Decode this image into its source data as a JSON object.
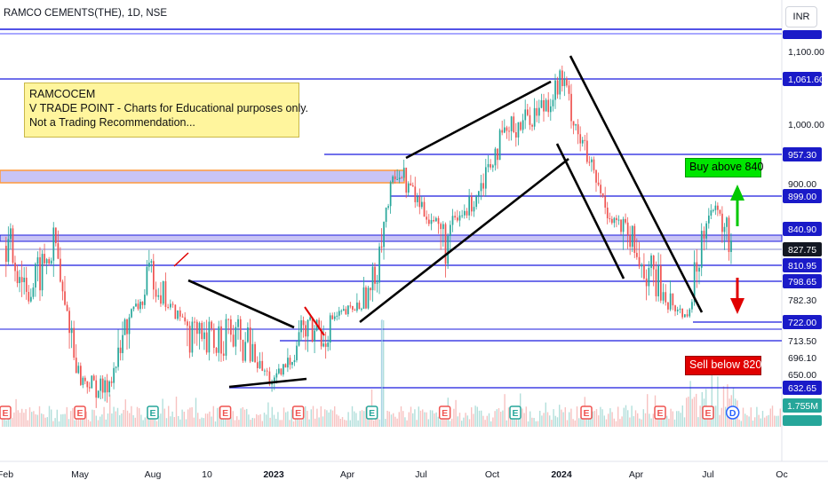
{
  "header": {
    "title": "RAMCO CEMENTS(THE), 1D, NSE",
    "currency_button": "INR"
  },
  "note": {
    "lines": [
      "RAMCOCEM",
      "V TRADE POINT - Charts for Educational purposes only.",
      "Not a Trading Recommendation..."
    ]
  },
  "signals": {
    "buy_label": "Buy above 840",
    "sell_label": "Sell below 820"
  },
  "chart_data": {
    "type": "line",
    "x_tick_labels": [
      "Feb",
      "May",
      "Aug",
      "10",
      "2023",
      "Apr",
      "Jul",
      "Oct",
      "2024",
      "Apr",
      "Jul",
      "Oc"
    ],
    "y_scale_ticks": [
      "1,100.00",
      "1,000.00",
      "900.00",
      "650.00"
    ],
    "price_levels": [
      {
        "value": "1,061.60",
        "style": "tag"
      },
      {
        "value": "957.30",
        "style": "tag"
      },
      {
        "value": "899.00",
        "style": "tag"
      },
      {
        "value": "840.90",
        "style": "tag"
      },
      {
        "value": "827.75",
        "style": "current"
      },
      {
        "value": "810.95",
        "style": "tag"
      },
      {
        "value": "798.65",
        "style": "tag"
      },
      {
        "value": "782.30",
        "style": "plain"
      },
      {
        "value": "722.00",
        "style": "tag"
      },
      {
        "value": "713.50",
        "style": "plain"
      },
      {
        "value": "696.10",
        "style": "plain"
      },
      {
        "value": "632.65",
        "style": "tag"
      }
    ],
    "volume_labels": [
      "1.755M"
    ],
    "current_price": 827.75,
    "price_path": [
      {
        "t": "Feb 2022",
        "close": 830
      },
      {
        "t": "Mar 2022",
        "close": 790
      },
      {
        "t": "Apr 2022",
        "close": 830
      },
      {
        "t": "May 2022",
        "close": 650
      },
      {
        "t": "Jun 2022",
        "close": 630
      },
      {
        "t": "Jul 2022",
        "close": 740
      },
      {
        "t": "Aug 2022",
        "close": 810
      },
      {
        "t": "Sep 2022",
        "close": 740
      },
      {
        "t": "Oct 2022",
        "close": 700
      },
      {
        "t": "Nov 2022",
        "close": 720
      },
      {
        "t": "Dec 2022",
        "close": 700
      },
      {
        "t": "Jan 2023",
        "close": 640
      },
      {
        "t": "Feb 2023",
        "close": 720
      },
      {
        "t": "Mar 2023",
        "close": 720
      },
      {
        "t": "Apr 2023",
        "close": 750
      },
      {
        "t": "May 2023",
        "close": 790
      },
      {
        "t": "Jun 2023",
        "close": 940
      },
      {
        "t": "Jul 2023",
        "close": 880
      },
      {
        "t": "Aug 2023",
        "close": 830
      },
      {
        "t": "Sep 2023",
        "close": 880
      },
      {
        "t": "Oct 2023",
        "close": 960
      },
      {
        "t": "Nov 2023",
        "close": 1000
      },
      {
        "t": "Dec 2023",
        "close": 1020
      },
      {
        "t": "Jan 2024",
        "close": 1060
      },
      {
        "t": "Feb 2024",
        "close": 950
      },
      {
        "t": "Mar 2024",
        "close": 860
      },
      {
        "t": "Apr 2024",
        "close": 820
      },
      {
        "t": "May 2024",
        "close": 790
      },
      {
        "t": "Jun 2024",
        "close": 740
      },
      {
        "t": "Jul 2024",
        "close": 880
      },
      {
        "t": "Aug 2024",
        "close": 827.75
      }
    ],
    "earnings_markers": [
      {
        "t": "Feb 2022",
        "label": "E",
        "kind": "neg"
      },
      {
        "t": "May 2022",
        "label": "E",
        "kind": "neg"
      },
      {
        "t": "Aug 2022",
        "label": "E",
        "kind": "pos"
      },
      {
        "t": "Nov 2022",
        "label": "E",
        "kind": "neg"
      },
      {
        "t": "Feb 2023",
        "label": "E",
        "kind": "neg"
      },
      {
        "t": "May 2023",
        "label": "E",
        "kind": "pos"
      },
      {
        "t": "Aug 2023",
        "label": "E",
        "kind": "neg"
      },
      {
        "t": "Nov 2023",
        "label": "E",
        "kind": "pos"
      },
      {
        "t": "Feb 2024",
        "label": "E",
        "kind": "neg"
      },
      {
        "t": "May 2024",
        "label": "E",
        "kind": "neg"
      },
      {
        "t": "Jul 2024",
        "label": "E",
        "kind": "neg"
      },
      {
        "t": "Aug 2024",
        "label": "D",
        "kind": "div"
      }
    ],
    "colors": {
      "up": "#26a69a",
      "down": "#ef5350",
      "level_line": "#1a1adf",
      "tag_bg": "#1a1ac8",
      "current_tag_bg": "#131722",
      "zone_fill": "#c9c4f5",
      "zone_border": "#ff9a3c",
      "buy_arrow": "#00c800",
      "sell_arrow": "#e00000"
    }
  }
}
